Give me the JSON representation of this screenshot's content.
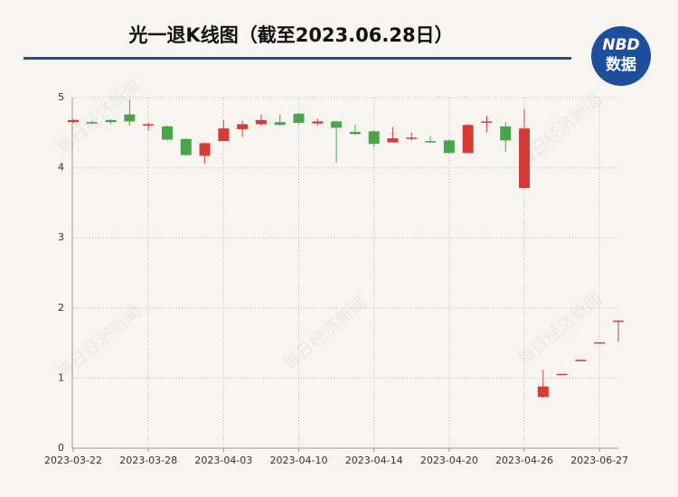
{
  "chart_data": {
    "type": "candlestick",
    "title": "光一退K线图（截至2023.06.28日）",
    "logo": {
      "top": "NBD",
      "bottom": "数据"
    },
    "watermark": "每日经济新闻",
    "categories": [
      "2023-03-22",
      null,
      null,
      null,
      "2023-03-28",
      null,
      null,
      null,
      "2023-04-03",
      null,
      null,
      null,
      "2023-04-10",
      null,
      null,
      null,
      "2023-04-14",
      null,
      null,
      null,
      "2023-04-20",
      null,
      null,
      null,
      "2023-04-26",
      null,
      null,
      null,
      "2023-06-27",
      null
    ],
    "open": [
      4.65,
      4.65,
      4.68,
      4.76,
      4.6,
      4.59,
      4.41,
      4.17,
      4.38,
      4.55,
      4.62,
      4.65,
      4.77,
      4.63,
      4.66,
      4.51,
      4.52,
      4.36,
      4.42,
      4.38,
      4.39,
      4.21,
      4.65,
      4.59,
      3.71,
      0.73,
      1.06,
      1.26,
      1.51,
      1.81
    ],
    "high": [
      4.69,
      4.67,
      4.69,
      4.97,
      4.64,
      4.6,
      4.42,
      4.36,
      4.68,
      4.67,
      4.76,
      4.76,
      4.78,
      4.7,
      4.67,
      4.61,
      4.53,
      4.58,
      4.5,
      4.45,
      4.4,
      4.62,
      4.74,
      4.65,
      4.84,
      1.12,
      1.06,
      1.26,
      1.51,
      1.82
    ],
    "low": [
      4.64,
      4.62,
      4.62,
      4.6,
      4.53,
      4.38,
      4.17,
      4.06,
      4.38,
      4.44,
      4.6,
      4.6,
      4.62,
      4.6,
      4.07,
      4.47,
      4.3,
      4.36,
      4.39,
      4.35,
      4.2,
      4.21,
      4.5,
      4.23,
      3.7,
      0.72,
      1.06,
      1.26,
      1.51,
      1.52
    ],
    "close": [
      4.68,
      4.63,
      4.65,
      4.66,
      4.62,
      4.4,
      4.18,
      4.35,
      4.56,
      4.62,
      4.68,
      4.61,
      4.64,
      4.66,
      4.57,
      4.48,
      4.34,
      4.42,
      4.43,
      4.36,
      4.21,
      4.61,
      4.66,
      4.39,
      4.56,
      0.88,
      1.06,
      1.26,
      1.51,
      1.82
    ],
    "up_color": "#d83b36",
    "down_color": "#4aa44c",
    "ylim": [
      0,
      5
    ],
    "yticks": [
      0,
      1,
      2,
      3,
      4,
      5
    ],
    "grid": true
  }
}
